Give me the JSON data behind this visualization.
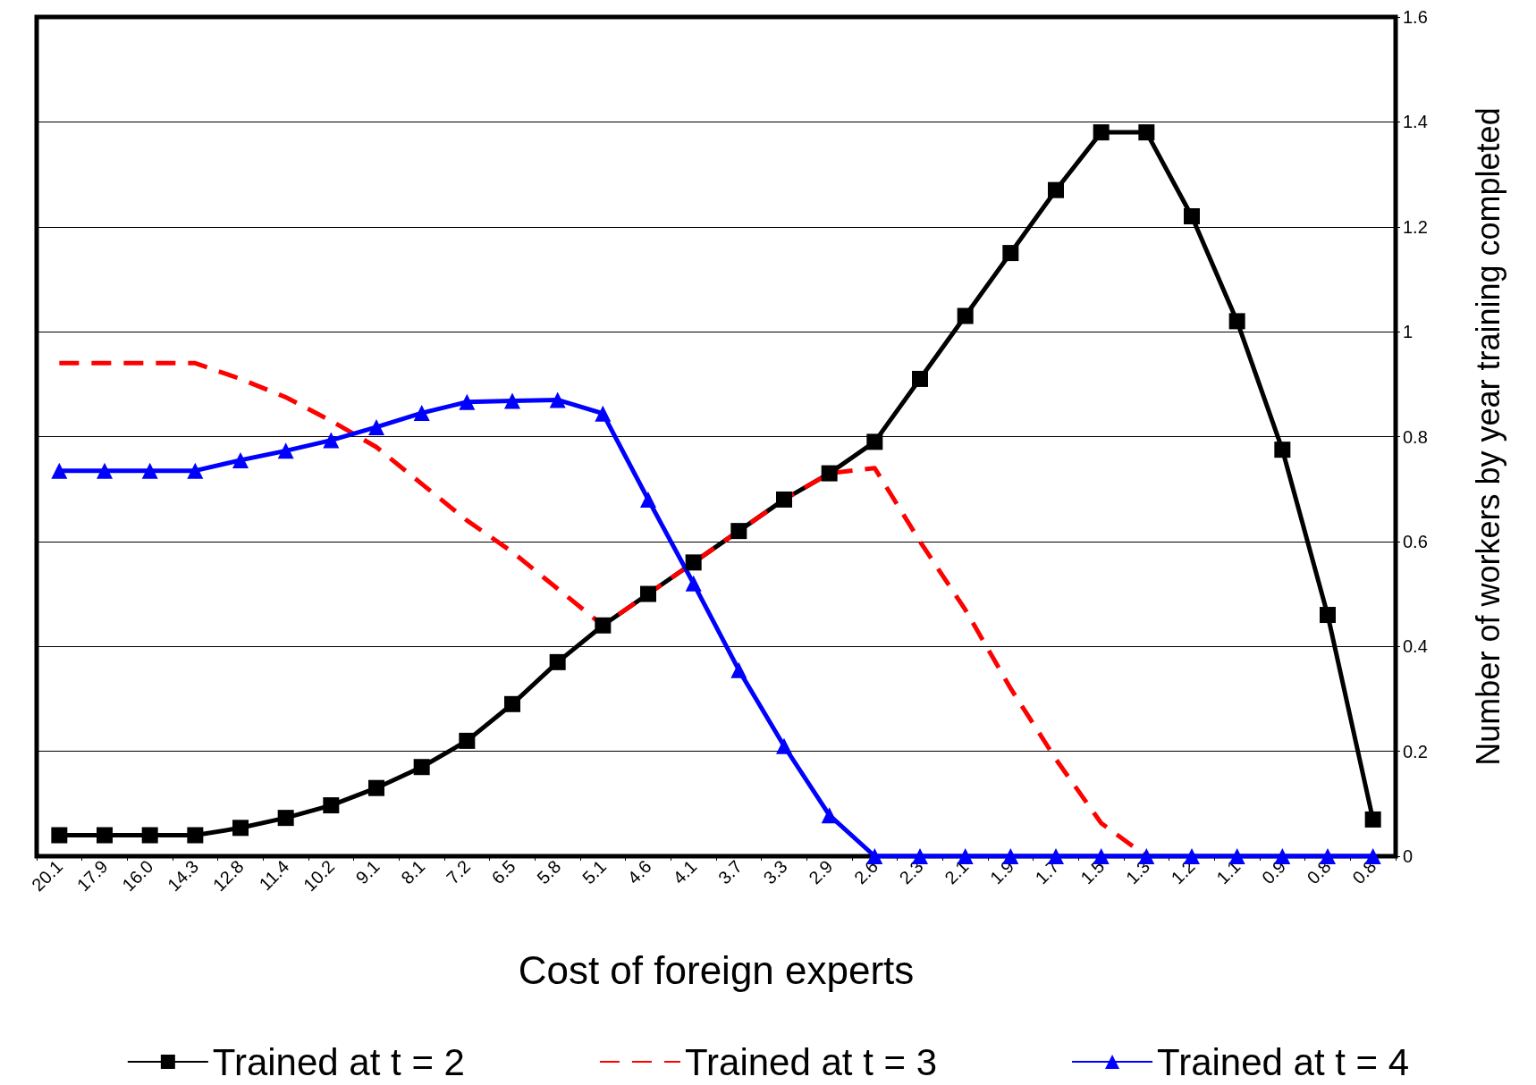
{
  "chart_data": {
    "type": "line",
    "xlabel": "Cost of foreign experts",
    "ylabel": "Number of workers by year training completed",
    "categories": [
      "20.1",
      "17.9",
      "16.0",
      "14.3",
      "12.8",
      "11.4",
      "10.2",
      "9.1",
      "8.1",
      "7.2",
      "6.5",
      "5.8",
      "5.1",
      "4.6",
      "4.1",
      "3.7",
      "3.3",
      "2.9",
      "2.6",
      "2.3",
      "2.1",
      "1.9",
      "1.7",
      "1.5",
      "1.3",
      "1.2",
      "1.1",
      "0.9",
      "0.8",
      "0.8"
    ],
    "series": [
      {
        "name": "Trained at t = 2",
        "color": "#000000",
        "marker": "square",
        "line_style": "solid",
        "values": [
          0.04,
          0.04,
          0.04,
          0.04,
          0.054,
          0.073,
          0.097,
          0.13,
          0.17,
          0.22,
          0.29,
          0.37,
          0.44,
          0.5,
          0.56,
          0.62,
          0.68,
          0.73,
          0.79,
          0.91,
          1.03,
          1.15,
          1.27,
          1.38,
          1.38,
          1.22,
          1.02,
          0.775,
          0.46,
          0.07
        ]
      },
      {
        "name": "Trained at t = 3",
        "color": "#ff0000",
        "marker": "none",
        "line_style": "dashed",
        "values": [
          0.94,
          0.94,
          0.94,
          0.94,
          0.91,
          0.875,
          0.83,
          0.78,
          0.71,
          0.64,
          0.58,
          0.51,
          0.44,
          0.5,
          0.56,
          0.62,
          0.68,
          0.73,
          0.74,
          0.6,
          0.47,
          0.32,
          0.185,
          0.063,
          0,
          null,
          null,
          null,
          null,
          null
        ]
      },
      {
        "name": "Trained at t = 4",
        "color": "#0000ff",
        "marker": "triangle",
        "line_style": "solid",
        "values": [
          0.735,
          0.735,
          0.735,
          0.735,
          0.755,
          0.773,
          0.793,
          0.818,
          0.845,
          0.866,
          0.868,
          0.87,
          0.844,
          0.68,
          0.52,
          0.355,
          0.21,
          0.078,
          0,
          0,
          0,
          0,
          0,
          0,
          0,
          0,
          0,
          0,
          0,
          0
        ]
      }
    ],
    "ylim": [
      0,
      1.6
    ],
    "yticks": [
      0,
      0.2,
      0.4,
      0.6,
      0.8,
      1,
      1.2,
      1.4,
      1.6
    ],
    "grid": "y",
    "legend": "bottom"
  }
}
